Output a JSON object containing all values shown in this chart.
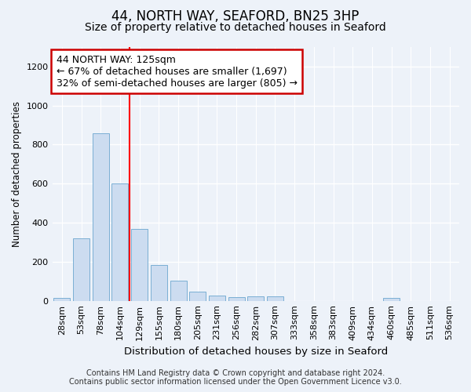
{
  "title1": "44, NORTH WAY, SEAFORD, BN25 3HP",
  "title2": "Size of property relative to detached houses in Seaford",
  "xlabel": "Distribution of detached houses by size in Seaford",
  "ylabel": "Number of detached properties",
  "categories": [
    "28sqm",
    "53sqm",
    "78sqm",
    "104sqm",
    "129sqm",
    "155sqm",
    "180sqm",
    "205sqm",
    "231sqm",
    "256sqm",
    "282sqm",
    "307sqm",
    "333sqm",
    "358sqm",
    "383sqm",
    "409sqm",
    "434sqm",
    "460sqm",
    "485sqm",
    "511sqm",
    "536sqm"
  ],
  "values": [
    15,
    320,
    860,
    600,
    370,
    185,
    105,
    47,
    25,
    20,
    22,
    22,
    0,
    0,
    0,
    0,
    0,
    15,
    0,
    0,
    0
  ],
  "bar_color": "#ccdcf0",
  "bar_edge_color": "#7aafd4",
  "red_line_index": 4,
  "annotation_line1": "44 NORTH WAY: 125sqm",
  "annotation_line2": "← 67% of detached houses are smaller (1,697)",
  "annotation_line3": "32% of semi-detached houses are larger (805) →",
  "annotation_box_color": "#ffffff",
  "annotation_box_edge": "#cc0000",
  "ylim": [
    0,
    1300
  ],
  "yticks": [
    0,
    200,
    400,
    600,
    800,
    1000,
    1200
  ],
  "footer1": "Contains HM Land Registry data © Crown copyright and database right 2024.",
  "footer2": "Contains public sector information licensed under the Open Government Licence v3.0.",
  "bg_color": "#edf2f9",
  "plot_bg_color": "#edf2f9",
  "grid_color": "#ffffff",
  "title1_fontsize": 12,
  "title2_fontsize": 10,
  "xlabel_fontsize": 9.5,
  "ylabel_fontsize": 8.5,
  "tick_fontsize": 8,
  "annot_fontsize": 9,
  "footer_fontsize": 7
}
